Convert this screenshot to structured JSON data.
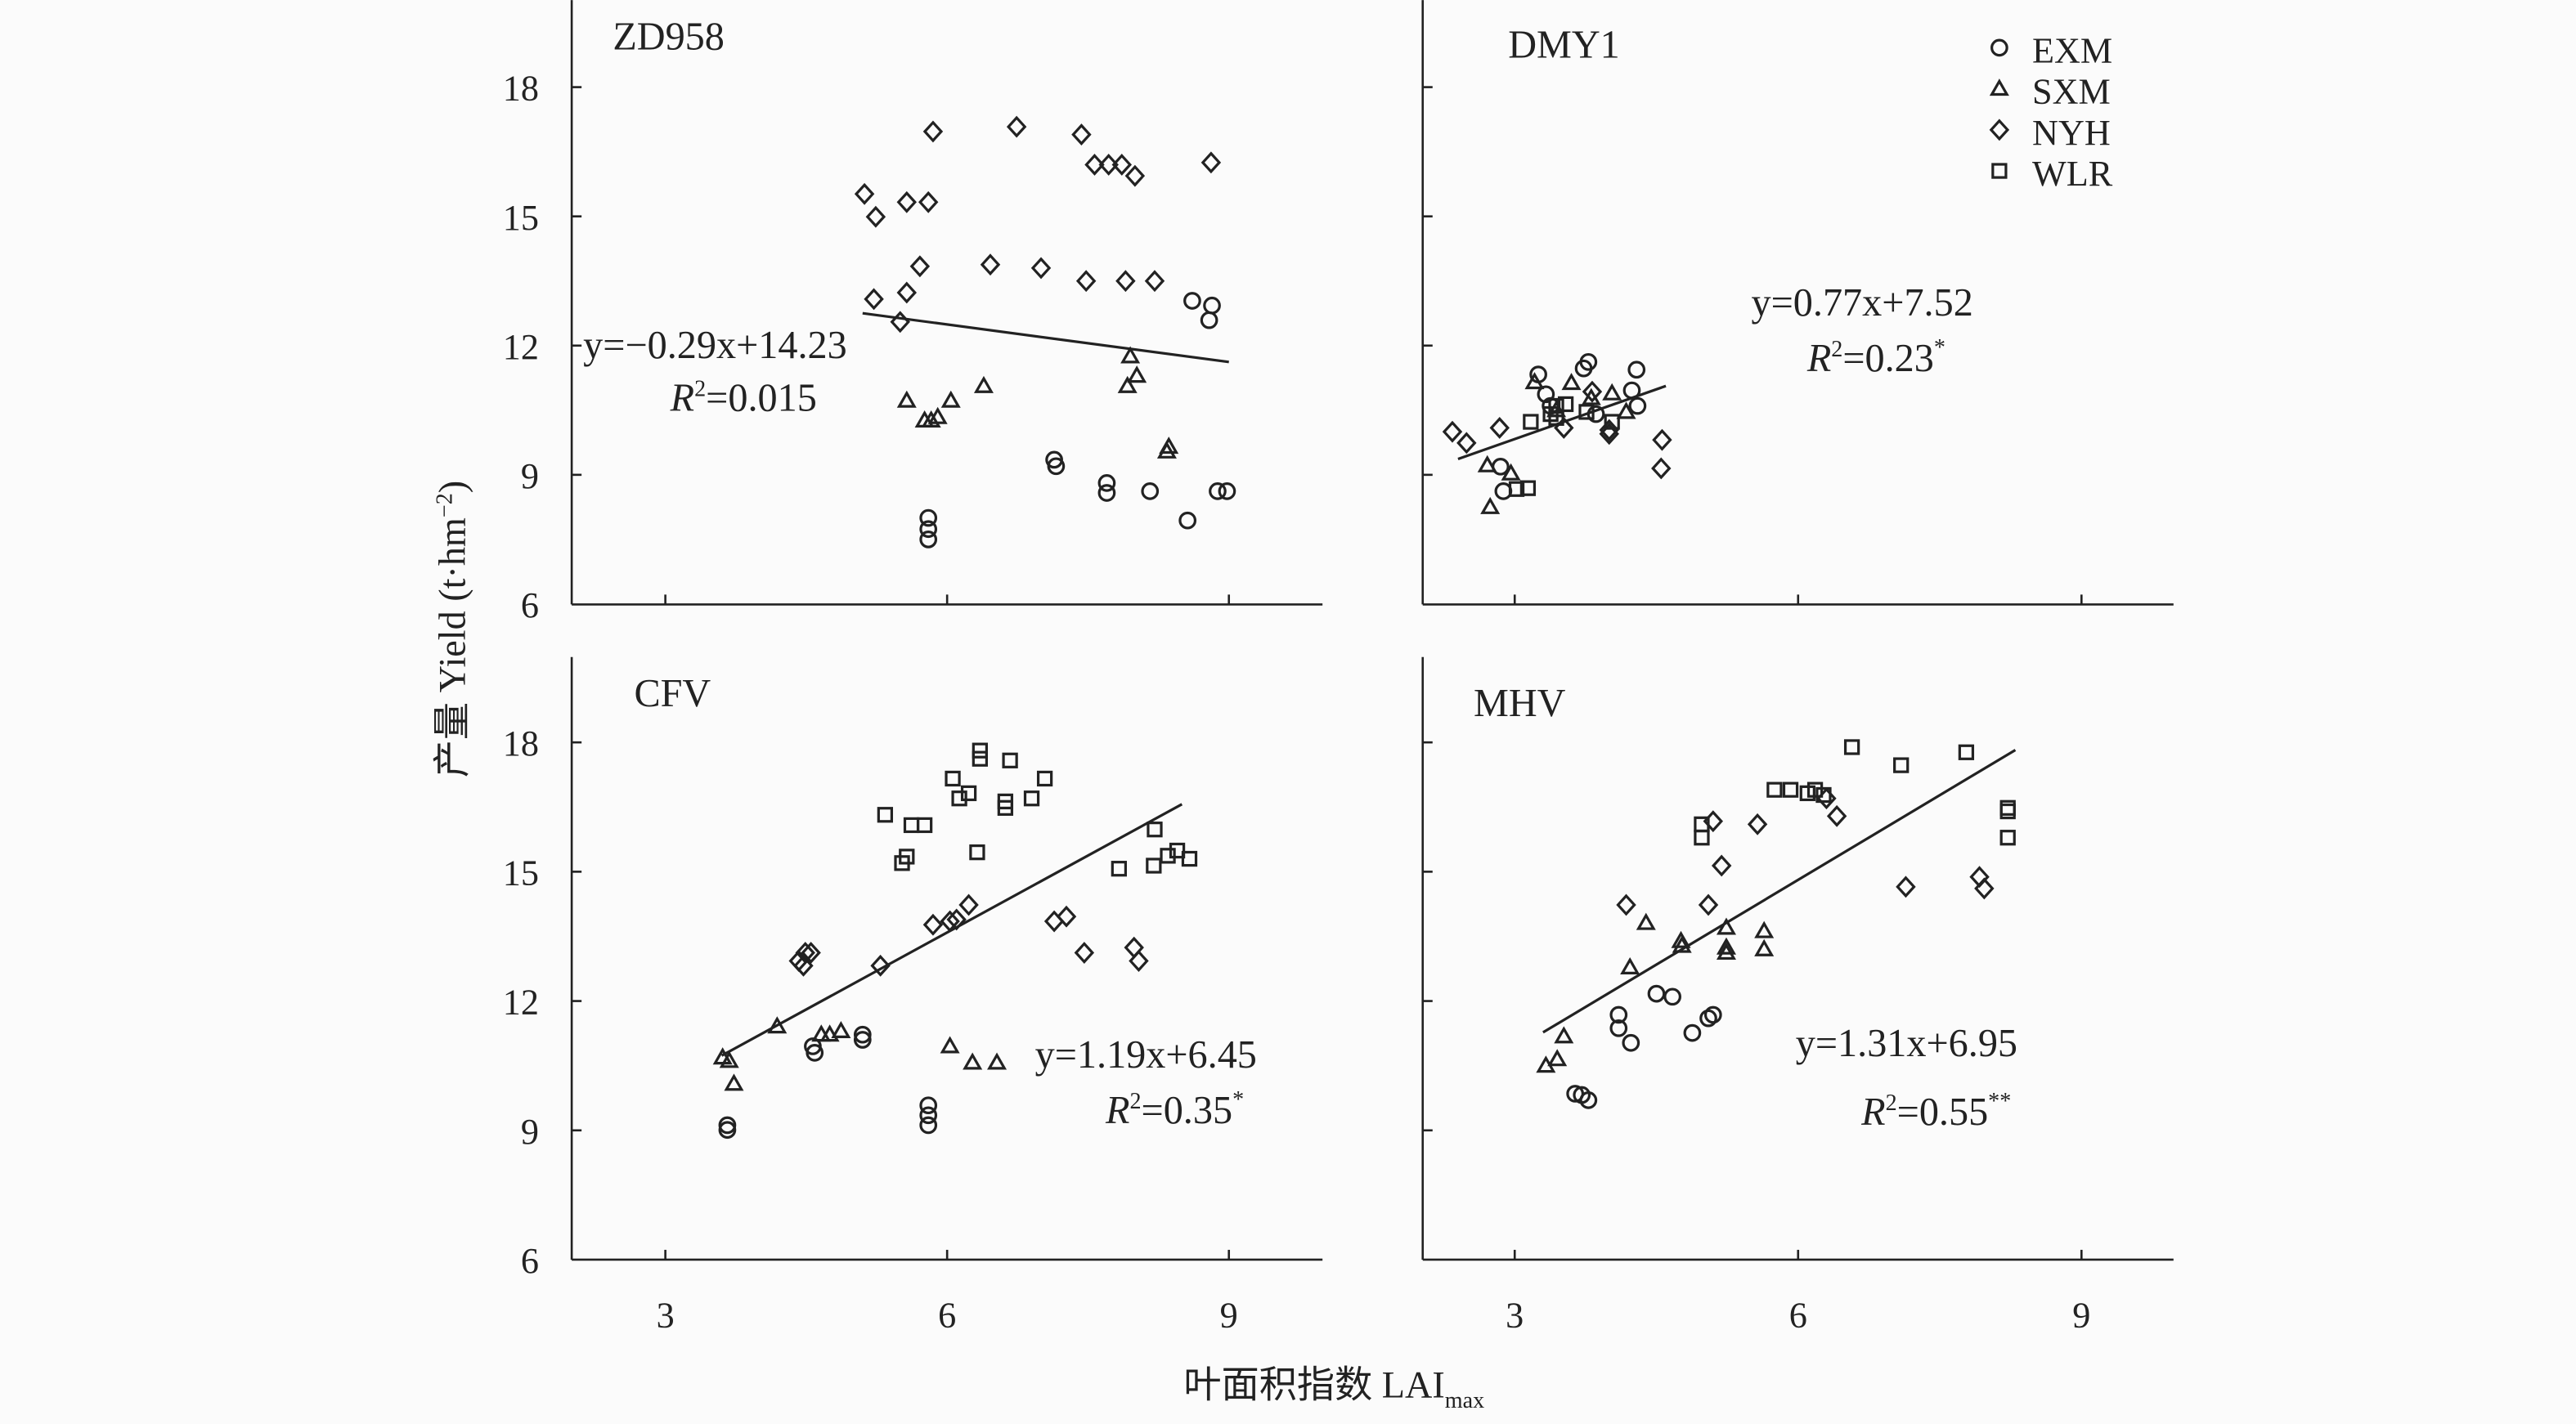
{
  "figure": {
    "xlabel": "叶面积指数 LAI",
    "xlabel_sub": "max",
    "ylabel": "产量 Yield (t·hm",
    "ylabel_sup": "−2",
    "ylabel_end": ")",
    "xticks": [
      "3",
      "6",
      "9"
    ],
    "yticks": [
      "6",
      "9",
      "12",
      "15",
      "18"
    ],
    "legend": [
      {
        "name": "EXM",
        "marker": "circle"
      },
      {
        "name": "SXM",
        "marker": "triangle"
      },
      {
        "name": "NYH",
        "marker": "diamond"
      },
      {
        "name": "WLR",
        "marker": "square"
      }
    ],
    "legend_placement": "top-right of DMY1 panel"
  },
  "chart_data": [
    {
      "type": "scatter",
      "title": "ZD958",
      "xlim": [
        2,
        10
      ],
      "ylim": [
        6,
        20
      ],
      "xlabel": "叶面积指数 LAImax",
      "ylabel": "产量 Yield (t·hm−2)",
      "series": [
        {
          "name": "EXM",
          "x": [
            8.61,
            8.82,
            8.79,
            7.14,
            7.16,
            7.7,
            7.7,
            8.16,
            8.88,
            8.98,
            8.56,
            5.8,
            5.8,
            5.8
          ],
          "y": [
            13.04,
            12.93,
            12.59,
            9.35,
            9.2,
            8.81,
            8.58,
            8.62,
            8.62,
            8.62,
            7.94,
            8.0,
            7.74,
            7.5
          ]
        },
        {
          "name": "SXM",
          "x": [
            5.57,
            6.04,
            6.39,
            7.95,
            8.02,
            7.92,
            5.76,
            5.83,
            5.9,
            8.34,
            8.36
          ],
          "y": [
            10.72,
            10.72,
            11.06,
            11.75,
            11.3,
            11.06,
            10.26,
            10.26,
            10.34,
            9.54,
            9.65
          ]
        },
        {
          "name": "NYH",
          "x": [
            5.12,
            5.24,
            5.57,
            5.8,
            5.85,
            6.74,
            7.43,
            7.57,
            7.72,
            7.86,
            8.0,
            8.81,
            5.22,
            5.57,
            5.71,
            6.46,
            7.0,
            7.48,
            7.9,
            8.21,
            5.5
          ],
          "y": [
            15.52,
            14.99,
            15.33,
            15.33,
            16.97,
            17.08,
            16.9,
            16.2,
            16.2,
            16.2,
            15.94,
            16.25,
            13.08,
            13.23,
            13.84,
            13.88,
            13.8,
            13.5,
            13.5,
            13.5,
            12.55
          ]
        },
        {
          "name": "WLR",
          "x": [],
          "y": []
        }
      ],
      "regression": {
        "slope": -0.29,
        "intercept": 14.23,
        "x_range": [
          5.1,
          9.0
        ],
        "equation": "y=−0.29x+14.23",
        "r2": "0.015",
        "significance": ""
      }
    },
    {
      "type": "scatter",
      "title": "DMY1",
      "xlim": [
        2,
        10
      ],
      "ylim": [
        6,
        20
      ],
      "series": [
        {
          "name": "EXM",
          "x": [
            3.25,
            3.73,
            3.78,
            4.29,
            4.24,
            4.3,
            2.85,
            2.88,
            3.33,
            3.38,
            3.86
          ],
          "y": [
            11.33,
            11.47,
            11.62,
            11.44,
            10.96,
            10.6,
            9.19,
            8.62,
            10.87,
            10.6,
            10.41
          ]
        },
        {
          "name": "SXM",
          "x": [
            2.71,
            2.74,
            2.96,
            3.21,
            3.6,
            4.03,
            4.18,
            3.81,
            3.44
          ],
          "y": [
            9.22,
            8.25,
            9.03,
            11.15,
            11.13,
            10.89,
            10.46,
            10.78,
            10.5
          ]
        },
        {
          "name": "NYH",
          "x": [
            2.34,
            2.49,
            2.84,
            4.56,
            4.55,
            4.0,
            3.52,
            3.82,
            4.0
          ],
          "y": [
            10.0,
            9.74,
            10.09,
            9.81,
            9.15,
            9.95,
            10.09,
            10.93,
            10.04
          ]
        },
        {
          "name": "WLR",
          "x": [
            3.17,
            3.02,
            3.14,
            3.44,
            4.03,
            3.54,
            3.76,
            3.44,
            3.38
          ],
          "y": [
            10.23,
            8.67,
            8.69,
            10.32,
            10.23,
            10.64,
            10.46,
            10.6,
            10.41
          ]
        }
      ],
      "regression": {
        "slope": 0.77,
        "intercept": 7.52,
        "x_range": [
          2.4,
          4.6
        ],
        "equation": "y=0.77x+7.52",
        "r2": "0.23",
        "significance": "*"
      }
    },
    {
      "type": "scatter",
      "title": "CFV",
      "xlim": [
        2,
        10
      ],
      "ylim": [
        6,
        20
      ],
      "series": [
        {
          "name": "EXM",
          "x": [
            3.66,
            3.66,
            4.57,
            4.59,
            5.1,
            5.1,
            5.8,
            5.8,
            5.8
          ],
          "y": [
            9.12,
            9.01,
            10.95,
            10.8,
            11.22,
            11.1,
            9.58,
            9.35,
            9.12
          ]
        },
        {
          "name": "SXM",
          "x": [
            3.61,
            3.68,
            3.73,
            4.19,
            4.66,
            4.75,
            4.87,
            6.03,
            6.27,
            6.53
          ],
          "y": [
            10.69,
            10.61,
            10.08,
            11.41,
            11.22,
            11.22,
            11.3,
            10.95,
            10.57,
            10.57
          ]
        },
        {
          "name": "NYH",
          "x": [
            4.42,
            4.49,
            4.55,
            4.47,
            5.29,
            5.85,
            6.03,
            6.1,
            6.23,
            7.14,
            7.27,
            7.46,
            7.99,
            8.04
          ],
          "y": [
            12.93,
            13.12,
            13.12,
            12.82,
            12.82,
            13.77,
            13.85,
            13.89,
            14.23,
            13.85,
            13.96,
            13.12,
            13.24,
            12.93
          ]
        },
        {
          "name": "WLR",
          "x": [
            5.34,
            5.62,
            5.76,
            5.52,
            5.57,
            6.06,
            6.13,
            6.23,
            6.35,
            6.35,
            6.62,
            6.62,
            6.67,
            6.9,
            7.04,
            6.32,
            7.83,
            8.21,
            8.2,
            8.35,
            8.45,
            8.58
          ],
          "y": [
            16.32,
            16.08,
            16.08,
            15.2,
            15.35,
            17.16,
            16.7,
            16.82,
            17.81,
            17.62,
            16.63,
            16.48,
            17.58,
            16.7,
            17.16,
            15.45,
            15.07,
            15.98,
            15.14,
            15.37,
            15.49,
            15.3
          ]
        }
      ],
      "regression": {
        "slope": 1.19,
        "intercept": 6.45,
        "x_range": [
          3.6,
          8.5
        ],
        "equation": "y=1.19x+6.45",
        "r2": "0.35",
        "significance": "*"
      }
    },
    {
      "type": "scatter",
      "title": "MHV",
      "xlim": [
        2,
        10
      ],
      "ylim": [
        6,
        20
      ],
      "series": [
        {
          "name": "EXM",
          "x": [
            3.64,
            3.71,
            3.78,
            4.1,
            4.1,
            4.23,
            4.5,
            4.67,
            4.88,
            5.05,
            5.1
          ],
          "y": [
            9.85,
            9.82,
            9.7,
            11.68,
            11.37,
            11.03,
            12.17,
            12.1,
            11.26,
            11.6,
            11.68
          ]
        },
        {
          "name": "SXM",
          "x": [
            3.33,
            3.45,
            3.52,
            4.22,
            4.39,
            4.76,
            4.77,
            5.24,
            5.24,
            5.24,
            5.64,
            5.64
          ],
          "y": [
            10.5,
            10.65,
            11.18,
            12.78,
            13.81,
            13.39,
            13.28,
            13.7,
            13.24,
            13.12,
            13.62,
            13.2
          ]
        },
        {
          "name": "NYH",
          "x": [
            4.18,
            5.05,
            5.19,
            5.1,
            5.57,
            6.3,
            6.41,
            7.14,
            7.92,
            7.97
          ],
          "y": [
            14.23,
            14.23,
            15.14,
            16.17,
            16.1,
            16.7,
            16.29,
            14.65,
            14.88,
            14.61
          ]
        },
        {
          "name": "WLR",
          "x": [
            6.57,
            7.09,
            7.78,
            8.22,
            8.22,
            8.22,
            4.98,
            4.98,
            5.75,
            5.92,
            6.1,
            6.18,
            6.27
          ],
          "y": [
            17.89,
            17.47,
            17.77,
            16.48,
            16.4,
            15.79,
            16.1,
            15.79,
            16.9,
            16.9,
            16.82,
            16.9,
            16.78
          ]
        }
      ],
      "regression": {
        "slope": 1.31,
        "intercept": 6.95,
        "x_range": [
          3.3,
          8.3
        ],
        "equation": "y=1.31x+6.95",
        "r2": "0.55",
        "significance": "**"
      }
    }
  ]
}
